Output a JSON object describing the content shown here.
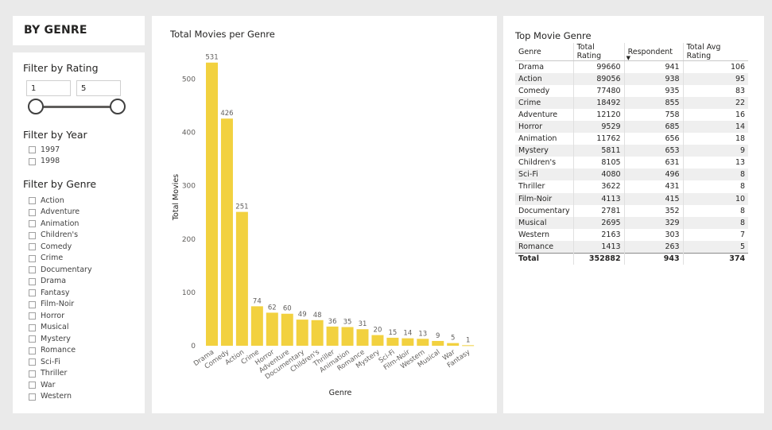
{
  "header": {
    "title": "BY GENRE"
  },
  "filters": {
    "rating": {
      "label": "Filter by Rating",
      "min": "1",
      "max": "5"
    },
    "year": {
      "label": "Filter by Year",
      "options": [
        "1997",
        "1998"
      ]
    },
    "genre": {
      "label": "Filter by Genre",
      "options": [
        "Action",
        "Adventure",
        "Animation",
        "Children's",
        "Comedy",
        "Crime",
        "Documentary",
        "Drama",
        "Fantasy",
        "Film-Noir",
        "Horror",
        "Musical",
        "Mystery",
        "Romance",
        "Sci-Fi",
        "Thriller",
        "War",
        "Western"
      ]
    }
  },
  "chart_data": {
    "type": "bar",
    "title": "Total Movies per Genre",
    "xlabel": "Genre",
    "ylabel": "Total Movies",
    "categories": [
      "Drama",
      "Comedy",
      "Action",
      "Crime",
      "Horror",
      "Adventure",
      "Documentary",
      "Children's",
      "Thriller",
      "Animation",
      "Romance",
      "Mystery",
      "Sci-Fi",
      "Film-Noir",
      "Western",
      "Musical",
      "War",
      "Fantasy"
    ],
    "values": [
      531,
      426,
      251,
      74,
      62,
      60,
      49,
      48,
      36,
      35,
      31,
      20,
      15,
      14,
      13,
      9,
      5,
      1
    ],
    "yticks": [
      0,
      100,
      200,
      300,
      400,
      500
    ],
    "ylim": [
      0,
      550
    ],
    "grid": false,
    "color": "#f2d13f"
  },
  "table": {
    "title": "Top Movie Genre",
    "columns": [
      "Genre",
      "Total Rating",
      "Respondent",
      "Total Avg Rating"
    ],
    "rows": [
      [
        "Drama",
        "99660",
        "941",
        "106"
      ],
      [
        "Action",
        "89056",
        "938",
        "95"
      ],
      [
        "Comedy",
        "77480",
        "935",
        "83"
      ],
      [
        "Crime",
        "18492",
        "855",
        "22"
      ],
      [
        "Adventure",
        "12120",
        "758",
        "16"
      ],
      [
        "Horror",
        "9529",
        "685",
        "14"
      ],
      [
        "Animation",
        "11762",
        "656",
        "18"
      ],
      [
        "Mystery",
        "5811",
        "653",
        "9"
      ],
      [
        "Children's",
        "8105",
        "631",
        "13"
      ],
      [
        "Sci-Fi",
        "4080",
        "496",
        "8"
      ],
      [
        "Thriller",
        "3622",
        "431",
        "8"
      ],
      [
        "Film-Noir",
        "4113",
        "415",
        "10"
      ],
      [
        "Documentary",
        "2781",
        "352",
        "8"
      ],
      [
        "Musical",
        "2695",
        "329",
        "8"
      ],
      [
        "Western",
        "2163",
        "303",
        "7"
      ],
      [
        "Romance",
        "1413",
        "263",
        "5"
      ]
    ],
    "total": [
      "Total",
      "352882",
      "943",
      "374"
    ]
  }
}
